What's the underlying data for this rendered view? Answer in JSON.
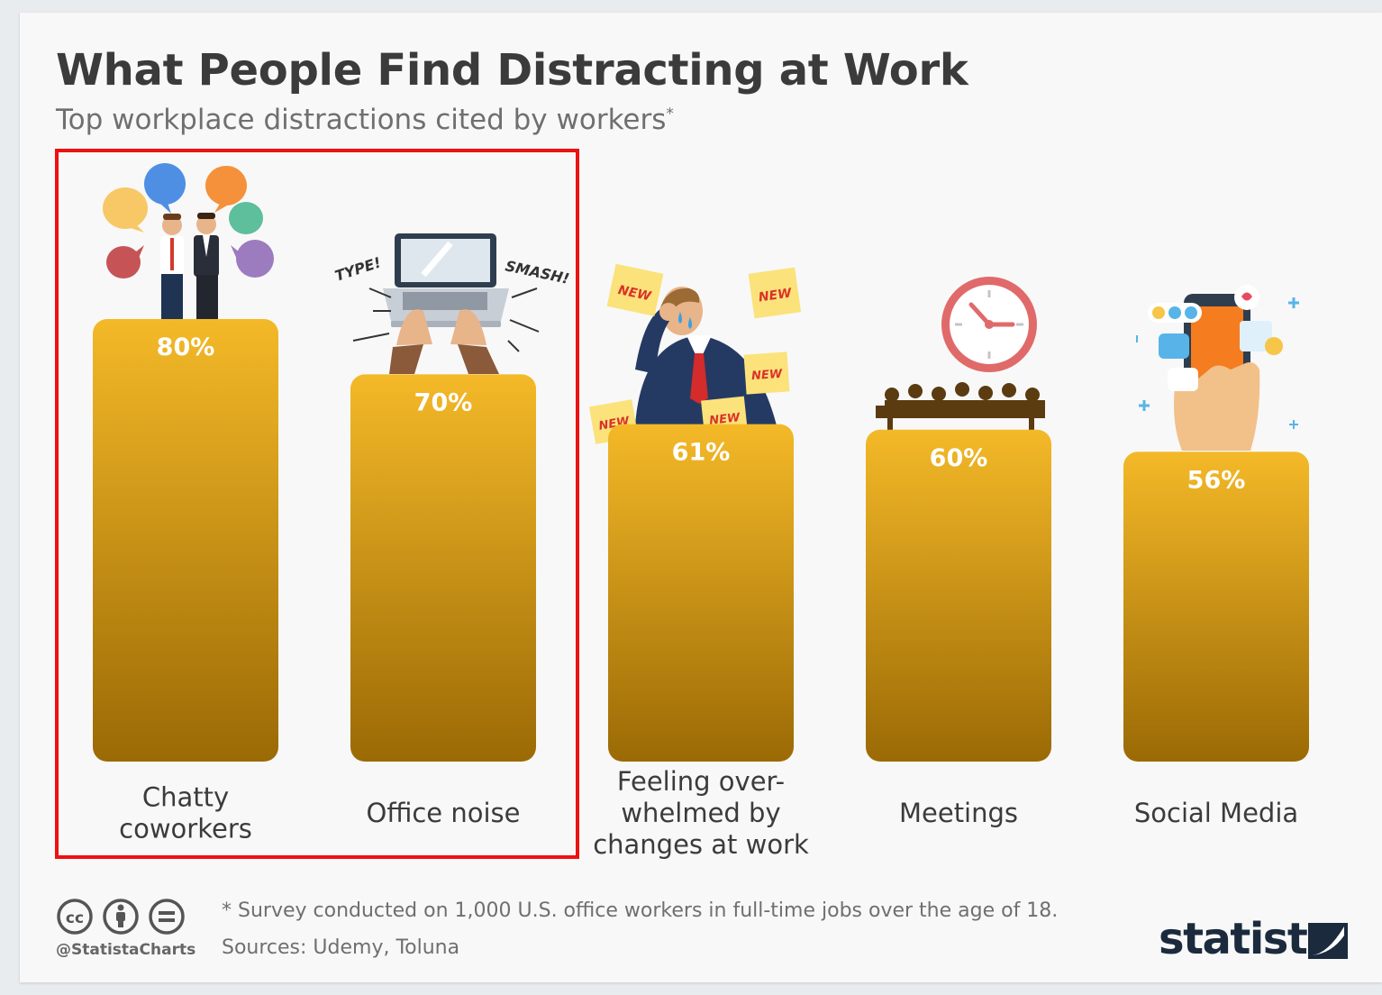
{
  "chart_data": {
    "type": "bar",
    "title": "What People Find Distracting at Work",
    "subtitle": "Top workplace distractions cited by workers",
    "subtitle_mark": "*",
    "categories": [
      "Chatty coworkers",
      "Office noise",
      "Feeling over-whelmed by changes at work",
      "Meetings",
      "Social Media"
    ],
    "category_lines": [
      [
        "Chatty",
        "coworkers"
      ],
      [
        "Office noise"
      ],
      [
        "Feeling over-",
        "whelmed by",
        "changes at work"
      ],
      [
        "Meetings"
      ],
      [
        "Social Media"
      ]
    ],
    "values": [
      80,
      70,
      61,
      60,
      56
    ],
    "value_labels": [
      "80%",
      "70%",
      "61%",
      "60%",
      "56%"
    ],
    "unit": "%",
    "ylim": [
      0,
      80
    ],
    "grid": false,
    "legend": "none",
    "highlighted_categories": [
      "Chatty coworkers",
      "Office noise"
    ]
  },
  "colors": {
    "bar_top": "#f4b928",
    "bar_bottom": "#9b6a05",
    "highlight": "#ee1111",
    "text": "#3b3b3b"
  },
  "illustrations": {
    "chatty": "people-chatting-icon",
    "noise": "laptop-typing-icon",
    "overwhelmed": "stressed-worker-icon",
    "meetings": "clock-meeting-icon",
    "social": "smartphone-icon"
  },
  "sticky_note_text": "NEW",
  "type_text": "TYPE!",
  "smash_text": "SMASH!",
  "footer": {
    "footnote": "* Survey conducted on 1,000 U.S. office workers in full-time jobs over the age of 18.",
    "sources": "Sources: Udemy, Toluna",
    "handle": "@StatistaCharts",
    "brand": "statista"
  }
}
